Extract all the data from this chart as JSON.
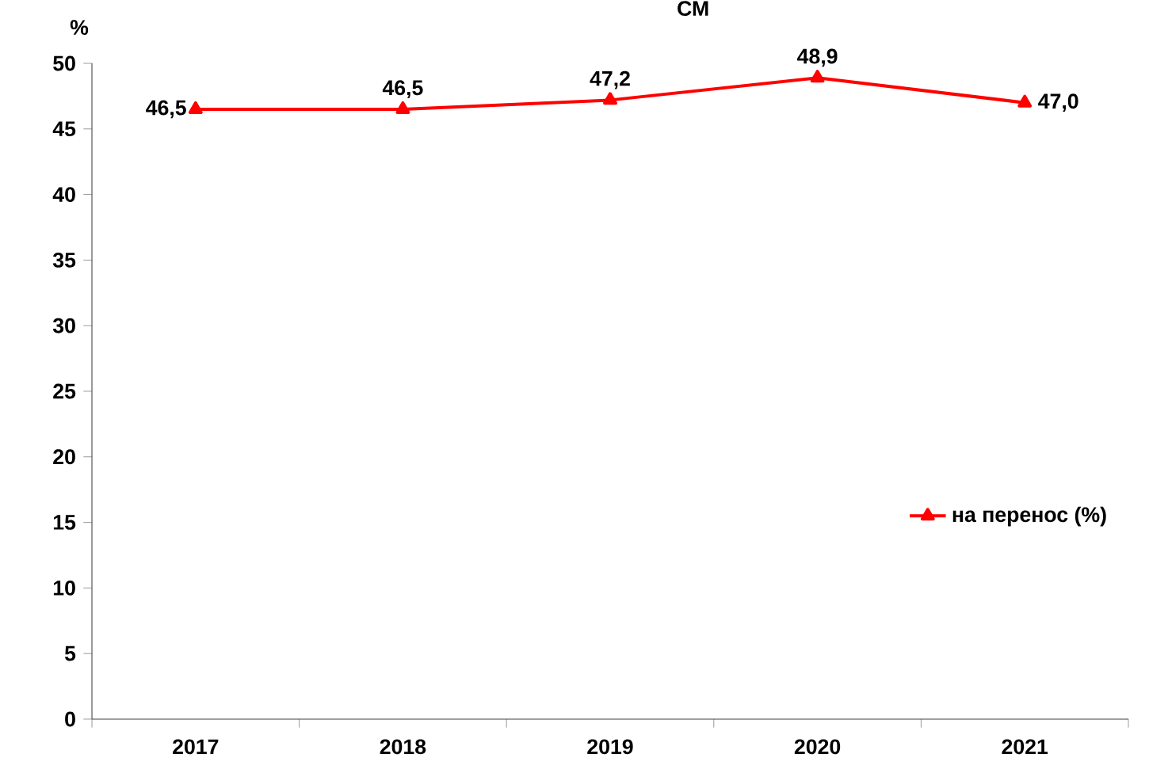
{
  "chart_data": {
    "type": "line",
    "title": "СМ",
    "ylabel": "%",
    "categories": [
      "2017",
      "2018",
      "2019",
      "2020",
      "2021"
    ],
    "series": [
      {
        "name": "на перенос (%)",
        "color": "#ff0000",
        "values": [
          46.5,
          46.5,
          47.2,
          48.9,
          47.0
        ],
        "value_labels": [
          "46,5",
          "46,5",
          "47,2",
          "48,9",
          "47,0"
        ]
      }
    ],
    "ylim": [
      0,
      50
    ],
    "yticks": [
      0,
      5,
      10,
      15,
      20,
      25,
      30,
      35,
      40,
      45,
      50
    ],
    "legend": "right",
    "marker": "triangle",
    "line_style": "solid"
  }
}
